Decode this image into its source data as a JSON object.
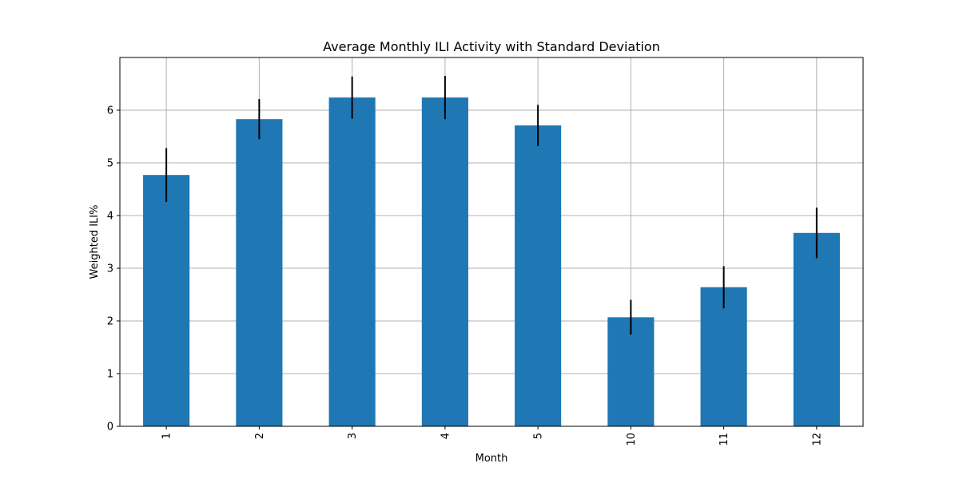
{
  "chart_data": {
    "type": "bar",
    "title": "Average Monthly ILI Activity with Standard Deviation",
    "xlabel": "Month",
    "ylabel": "Weighted ILI%",
    "categories": [
      "1",
      "2",
      "3",
      "4",
      "5",
      "10",
      "11",
      "12"
    ],
    "values": [
      4.77,
      5.83,
      6.24,
      6.24,
      5.71,
      2.07,
      2.64,
      3.67
    ],
    "errors": [
      0.51,
      0.38,
      0.4,
      0.41,
      0.39,
      0.33,
      0.4,
      0.48
    ],
    "ylim": [
      0,
      7.0
    ],
    "yticks": [
      0,
      1,
      2,
      3,
      4,
      5,
      6
    ],
    "grid": true,
    "x_tick_rotation": "vertical",
    "bar_color": "#1f77b4",
    "error_color": "#000000",
    "grid_color": "#b0b0b0"
  }
}
